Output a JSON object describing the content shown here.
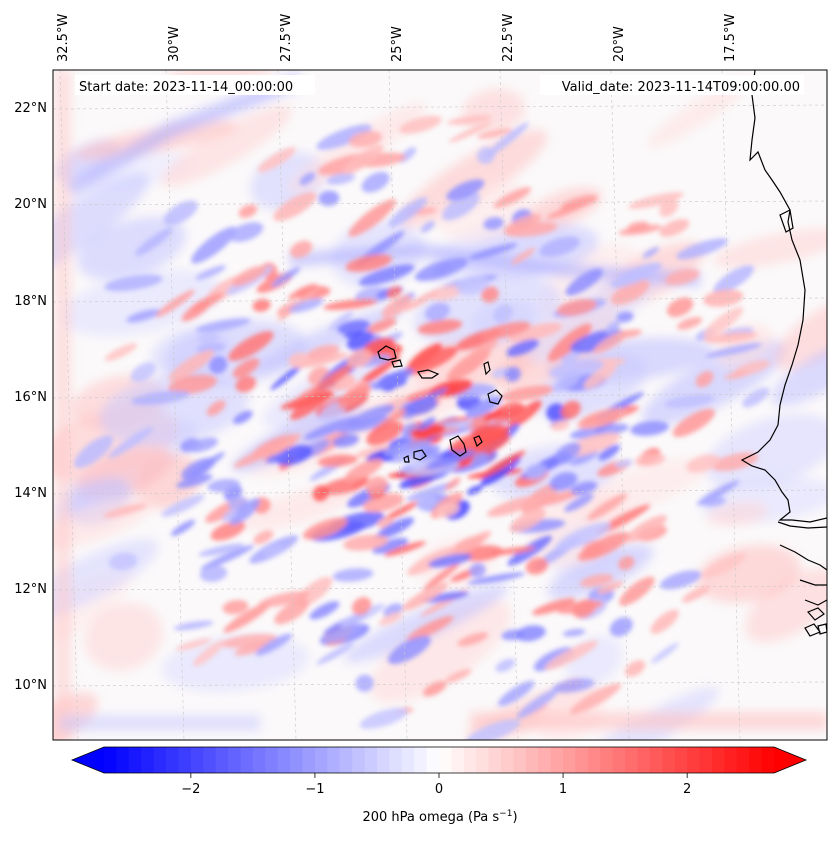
{
  "map": {
    "start_date": "Start date: 2023-11-14_00:00:00",
    "valid_date": "Valid_date: 2023-11-14T09:00:00.00",
    "lon_labels": [
      "32.5°W",
      "30°W",
      "27.5°W",
      "25°W",
      "22.5°W",
      "20°W",
      "17.5°W"
    ],
    "lat_labels": [
      "22°N",
      "20°N",
      "18°N",
      "16°N",
      "14°N",
      "12°N",
      "10°N"
    ],
    "field": "200 hPa omega",
    "units": "Pa s⁻¹"
  },
  "colorbar": {
    "label": "200 hPa omega (Pa s−1)",
    "label_main": "200 hPa omega (Pa s",
    "label_exp": "−1",
    "label_close": ")",
    "ticks": [
      "−2",
      "−1",
      "0",
      "1",
      "2"
    ],
    "tick_values": [
      -2,
      -1,
      0,
      1,
      2
    ],
    "vmin": -2.7,
    "vmax": 2.7,
    "low_color": "#0000ff",
    "mid_color": "#ffffff",
    "high_color": "#ff0000"
  }
}
